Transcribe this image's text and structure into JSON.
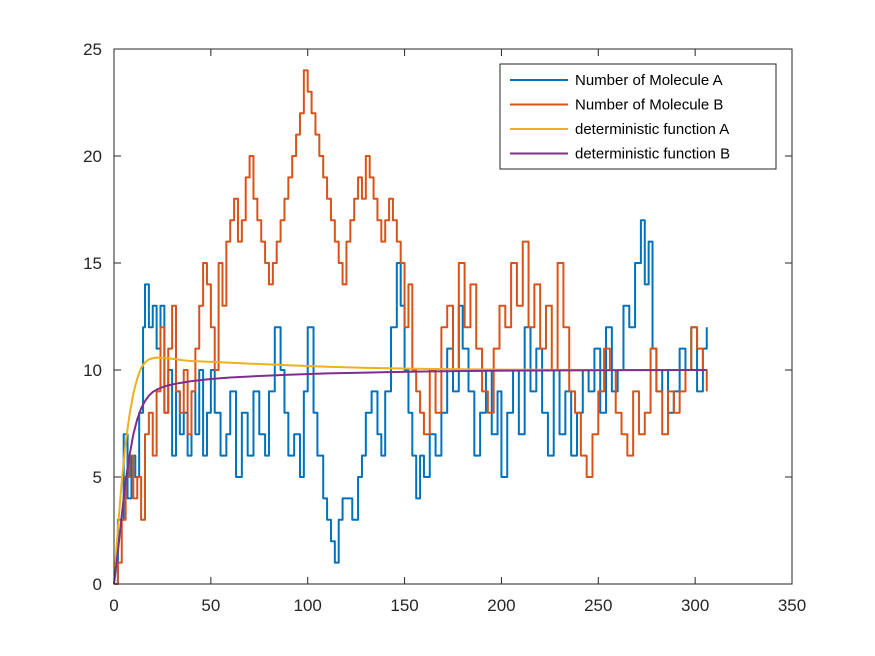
{
  "chart_data": {
    "type": "line",
    "title": "",
    "xlabel": "",
    "ylabel": "",
    "xlim": [
      0,
      350
    ],
    "ylim": [
      0,
      25
    ],
    "xticks": [
      0,
      50,
      100,
      150,
      200,
      250,
      300,
      350
    ],
    "yticks": [
      0,
      5,
      10,
      15,
      20,
      25
    ],
    "grid": false,
    "legend_position": "top-right",
    "series": [
      {
        "name": "Number of Molecule A",
        "color": "#0072BD",
        "style": "step",
        "x": [
          0,
          2,
          5,
          7,
          9,
          11,
          13,
          15,
          16,
          18,
          20,
          22,
          24,
          26,
          28,
          30,
          32,
          34,
          36,
          38,
          40,
          42,
          44,
          46,
          48,
          50,
          52,
          55,
          58,
          60,
          63,
          66,
          69,
          72,
          75,
          78,
          80,
          83,
          86,
          88,
          90,
          93,
          96,
          98,
          100,
          103,
          105,
          108,
          110,
          112,
          114,
          116,
          118,
          120,
          123,
          126,
          128,
          130,
          133,
          136,
          138,
          140,
          143,
          146,
          148,
          150,
          152,
          154,
          156,
          158,
          160,
          163,
          166,
          169,
          172,
          175,
          178,
          180,
          183,
          186,
          189,
          192,
          195,
          198,
          200,
          203,
          206,
          209,
          212,
          215,
          218,
          221,
          224,
          227,
          230,
          233,
          236,
          239,
          242,
          245,
          248,
          251,
          254,
          257,
          260,
          263,
          266,
          269,
          272,
          274,
          276,
          278,
          280,
          283,
          286,
          289,
          292,
          295,
          298,
          301,
          304,
          306
        ],
        "y": [
          0,
          3,
          7,
          4,
          6,
          5,
          8,
          12,
          14,
          12,
          13,
          11,
          13,
          8,
          10,
          6,
          9,
          7,
          8,
          6,
          9,
          7,
          10,
          6,
          8,
          10,
          8,
          6,
          7,
          9,
          5,
          8,
          6,
          9,
          7,
          6,
          9,
          12,
          10,
          8,
          6,
          7,
          5,
          9,
          12,
          8,
          6,
          4,
          3,
          2,
          1,
          3,
          4,
          4,
          3,
          5,
          6,
          8,
          9,
          7,
          6,
          9,
          12,
          15,
          13,
          10,
          8,
          6,
          4,
          6,
          5,
          7,
          6,
          8,
          11,
          9,
          13,
          11,
          9,
          6,
          8,
          10,
          7,
          9,
          5,
          8,
          10,
          7,
          12,
          9,
          11,
          8,
          6,
          10,
          7,
          9,
          6,
          8,
          10,
          9,
          11,
          8,
          12,
          9,
          10,
          13,
          12,
          15,
          17,
          14,
          16,
          11,
          9,
          10,
          8,
          9,
          11,
          10,
          12,
          9,
          11,
          12
        ]
      },
      {
        "name": "Number of Molecule B",
        "color": "#D95319",
        "style": "step",
        "x": [
          0,
          2,
          4,
          6,
          8,
          10,
          12,
          14,
          16,
          18,
          20,
          22,
          24,
          26,
          28,
          30,
          32,
          34,
          36,
          38,
          40,
          42,
          44,
          46,
          48,
          50,
          52,
          54,
          56,
          58,
          60,
          62,
          64,
          66,
          68,
          70,
          72,
          74,
          76,
          78,
          80,
          82,
          84,
          86,
          88,
          90,
          92,
          94,
          96,
          98,
          100,
          102,
          104,
          106,
          108,
          110,
          112,
          114,
          116,
          118,
          120,
          122,
          124,
          126,
          128,
          130,
          132,
          134,
          136,
          138,
          140,
          142,
          144,
          146,
          148,
          150,
          152,
          154,
          156,
          158,
          160,
          163,
          166,
          169,
          172,
          175,
          178,
          181,
          184,
          187,
          190,
          193,
          196,
          199,
          202,
          205,
          208,
          211,
          214,
          217,
          220,
          223,
          226,
          229,
          232,
          235,
          238,
          241,
          244,
          247,
          250,
          253,
          256,
          259,
          262,
          265,
          268,
          271,
          274,
          277,
          280,
          283,
          286,
          289,
          292,
          295,
          298,
          301,
          304,
          306
        ],
        "y": [
          0,
          1,
          3,
          5,
          6,
          4,
          5,
          3,
          7,
          8,
          6,
          9,
          12,
          8,
          11,
          13,
          9,
          8,
          10,
          7,
          9,
          11,
          13,
          15,
          14,
          12,
          10,
          15,
          13,
          16,
          17,
          18,
          16,
          17,
          19,
          20,
          18,
          17,
          16,
          15,
          14,
          15,
          16,
          17,
          18,
          19,
          20,
          21,
          22,
          24,
          23,
          22,
          21,
          20,
          19,
          18,
          17,
          16,
          15,
          14,
          16,
          17,
          18,
          19,
          18,
          20,
          19,
          18,
          17,
          16,
          17,
          18,
          17,
          16,
          15,
          12,
          14,
          10,
          9,
          8,
          7,
          10,
          8,
          12,
          13,
          10,
          15,
          12,
          14,
          11,
          9,
          8,
          11,
          13,
          12,
          15,
          13,
          16,
          12,
          14,
          11,
          13,
          10,
          15,
          12,
          9,
          8,
          6,
          5,
          7,
          9,
          11,
          10,
          8,
          7,
          6,
          9,
          7,
          8,
          11,
          9,
          7,
          9,
          8,
          9,
          10,
          12,
          11,
          10,
          9
        ]
      },
      {
        "name": "deterministic function A",
        "color": "#EDB120",
        "style": "line",
        "x": [
          0,
          2,
          4,
          6,
          8,
          10,
          12,
          14,
          16,
          18,
          20,
          22,
          25,
          28,
          32,
          36,
          40,
          50,
          60,
          75,
          90,
          110,
          130,
          160,
          200,
          250,
          306
        ],
        "y": [
          0,
          2.6,
          4.8,
          6.6,
          7.9,
          8.9,
          9.6,
          10.1,
          10.35,
          10.5,
          10.55,
          10.58,
          10.57,
          10.55,
          10.5,
          10.45,
          10.42,
          10.38,
          10.34,
          10.28,
          10.22,
          10.15,
          10.1,
          10.05,
          10.02,
          10.0,
          10.0
        ]
      },
      {
        "name": "deterministic function B",
        "color": "#7E2F8E",
        "style": "line",
        "x": [
          0,
          2,
          4,
          6,
          8,
          10,
          12,
          14,
          16,
          18,
          20,
          22,
          25,
          28,
          32,
          36,
          40,
          50,
          60,
          75,
          90,
          110,
          130,
          160,
          200,
          250,
          306
        ],
        "y": [
          0,
          1.5,
          3.2,
          4.8,
          6.0,
          7.0,
          7.7,
          8.2,
          8.55,
          8.8,
          8.97,
          9.08,
          9.2,
          9.28,
          9.36,
          9.42,
          9.48,
          9.58,
          9.65,
          9.72,
          9.78,
          9.84,
          9.88,
          9.93,
          9.97,
          9.99,
          10.0
        ]
      }
    ]
  }
}
